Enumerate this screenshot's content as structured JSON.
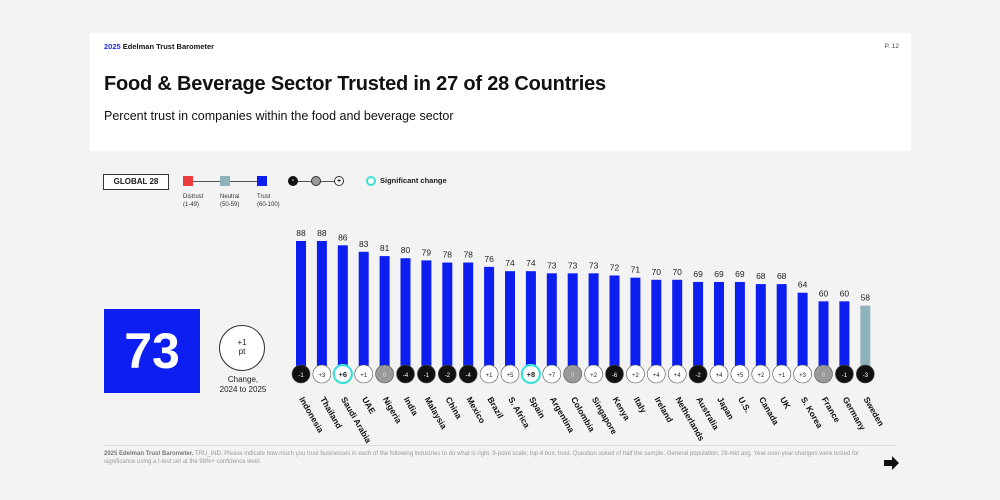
{
  "header": {
    "brand_year": "2025",
    "brand_name": "Edelman Trust Barometer",
    "page": "P. 12",
    "title": "Food & Beverage Sector Trusted in 27 of 28 Countries",
    "subtitle": "Percent trust in companies within the food and beverage sector"
  },
  "legend": {
    "global_label": "GLOBAL 28",
    "distrust": {
      "label": "Distrust",
      "range": "(1-49)",
      "color": "#ee3b3b"
    },
    "neutral": {
      "label": "Neutral",
      "range": "(50-59)",
      "color": "#8fb3bb"
    },
    "trust": {
      "label": "Trust",
      "range": "(60-100)",
      "color": "#0d1ff0"
    },
    "change_minus": "-",
    "change_plus": "+",
    "significant_label": "Significant change"
  },
  "global": {
    "value": "73",
    "change_line1": "+1",
    "change_line2": "pt",
    "change_caption_line1": "Change,",
    "change_caption_line2": "2024 to 2025"
  },
  "chart_data": {
    "type": "bar",
    "title": "Food & Beverage Sector Trusted in 27 of 28 Countries",
    "subtitle": "Percent trust in companies within the food and beverage sector",
    "ylim": [
      0,
      100
    ],
    "categories": [
      "Indonesia",
      "Thailand",
      "Saudi Arabia",
      "UAE",
      "Nigeria",
      "India",
      "Malaysia",
      "China",
      "Mexico",
      "Brazil",
      "S. Africa",
      "Spain",
      "Argentina",
      "Colombia",
      "Singapore",
      "Kenya",
      "Italy",
      "Ireland",
      "Netherlands",
      "Australia",
      "Japan",
      "U.S.",
      "Canada",
      "UK",
      "S. Korea",
      "France",
      "Germany",
      "Sweden"
    ],
    "values": [
      88,
      88,
      86,
      83,
      81,
      80,
      79,
      78,
      78,
      76,
      74,
      74,
      73,
      73,
      73,
      72,
      71,
      70,
      70,
      69,
      69,
      69,
      68,
      68,
      64,
      60,
      60,
      58
    ],
    "changes": [
      "-1",
      "+3",
      "+6",
      "+1",
      "0",
      "-4",
      "-1",
      "-2",
      "-4",
      "+1",
      "+5",
      "+8",
      "+7",
      "0",
      "+2",
      "-6",
      "+2",
      "+4",
      "+4",
      "-2",
      "+4",
      "+5",
      "+2",
      "+1",
      "+3",
      "0",
      "-1",
      "-3"
    ],
    "significant": [
      false,
      false,
      true,
      false,
      false,
      false,
      false,
      false,
      false,
      false,
      false,
      true,
      false,
      false,
      false,
      false,
      false,
      false,
      false,
      false,
      false,
      false,
      false,
      false,
      false,
      false,
      false,
      false
    ],
    "colors": {
      "trust": "#0d1ff0",
      "neutral": "#8fb3bb",
      "distrust": "#ee3b3b",
      "significant": "#3ee0d6"
    }
  },
  "footer": {
    "source": "2025 Edelman Trust Barometer.",
    "note": "TRU_IND. Please indicate how much you trust businesses in each of the following industries to do what is right. 9-point scale; top 4 box, trust. Question asked of half the sample. General population, 28-mkt avg. Year-over-year changes were tested for significance using a t-test set at the 99%+ confidence level."
  }
}
